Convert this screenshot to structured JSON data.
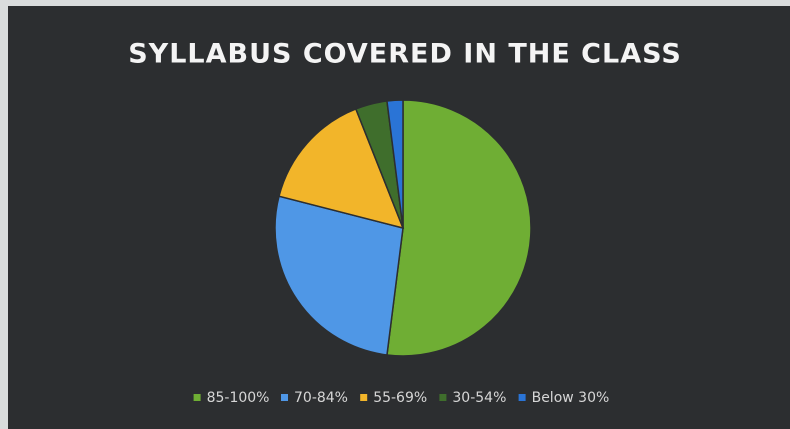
{
  "chart_data": {
    "type": "pie",
    "title": "SYLLABUS COVERED IN THE CLASS",
    "categories": [
      "85-100%",
      "70-84%",
      "55-69%",
      "30-54%",
      "Below 30%"
    ],
    "values": [
      52,
      27,
      15,
      4,
      2
    ],
    "colors": [
      "#6fae34",
      "#4f97e6",
      "#f2b52a",
      "#3f6e2c",
      "#2a74d6"
    ],
    "legend": "bottom"
  }
}
